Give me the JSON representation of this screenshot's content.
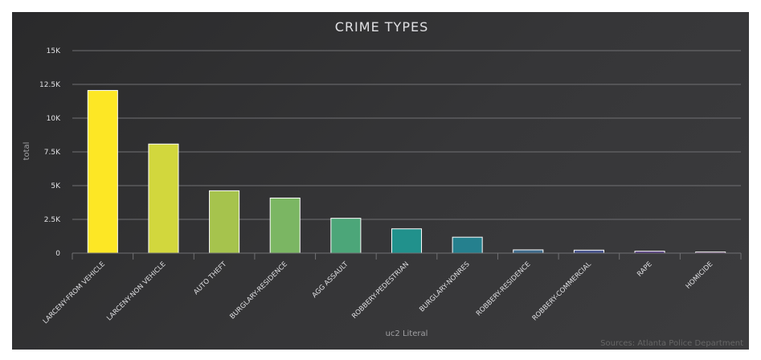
{
  "chart_data": {
    "type": "bar",
    "title": "CRIME TYPES",
    "xlabel": "uc2 Literal",
    "ylabel": "total",
    "credits": "Sources: Atlanta Police Department",
    "categories": [
      "LARCENY-FROM VEHICLE",
      "LARCENY-NON VEHICLE",
      "AUTO THEFT",
      "BURGLARY-RESIDENCE",
      "AGG ASSAULT",
      "ROBBERY-PEDESTRIAN",
      "BURGLARY-NONRES",
      "ROBBERY-RESIDENCE",
      "ROBBERY-COMMERCIAL",
      "RAPE",
      "HOMICIDE"
    ],
    "values": [
      12050,
      8080,
      4620,
      4080,
      2580,
      1800,
      1180,
      240,
      220,
      140,
      80
    ],
    "colors": [
      "#fde725",
      "#d2d73d",
      "#a6c34d",
      "#7bb663",
      "#4ca679",
      "#21918c",
      "#25808e",
      "#3e6a8b",
      "#46528c",
      "#482a7b",
      "#440154"
    ],
    "ylim": [
      0,
      15000
    ],
    "yticks": [
      0,
      2500,
      5000,
      7500,
      10000,
      12500,
      15000
    ],
    "ytick_labels": [
      "0",
      "2.5K",
      "5K",
      "7.5K",
      "10K",
      "12.5K",
      "15K"
    ],
    "grid": true,
    "legend": "none"
  }
}
